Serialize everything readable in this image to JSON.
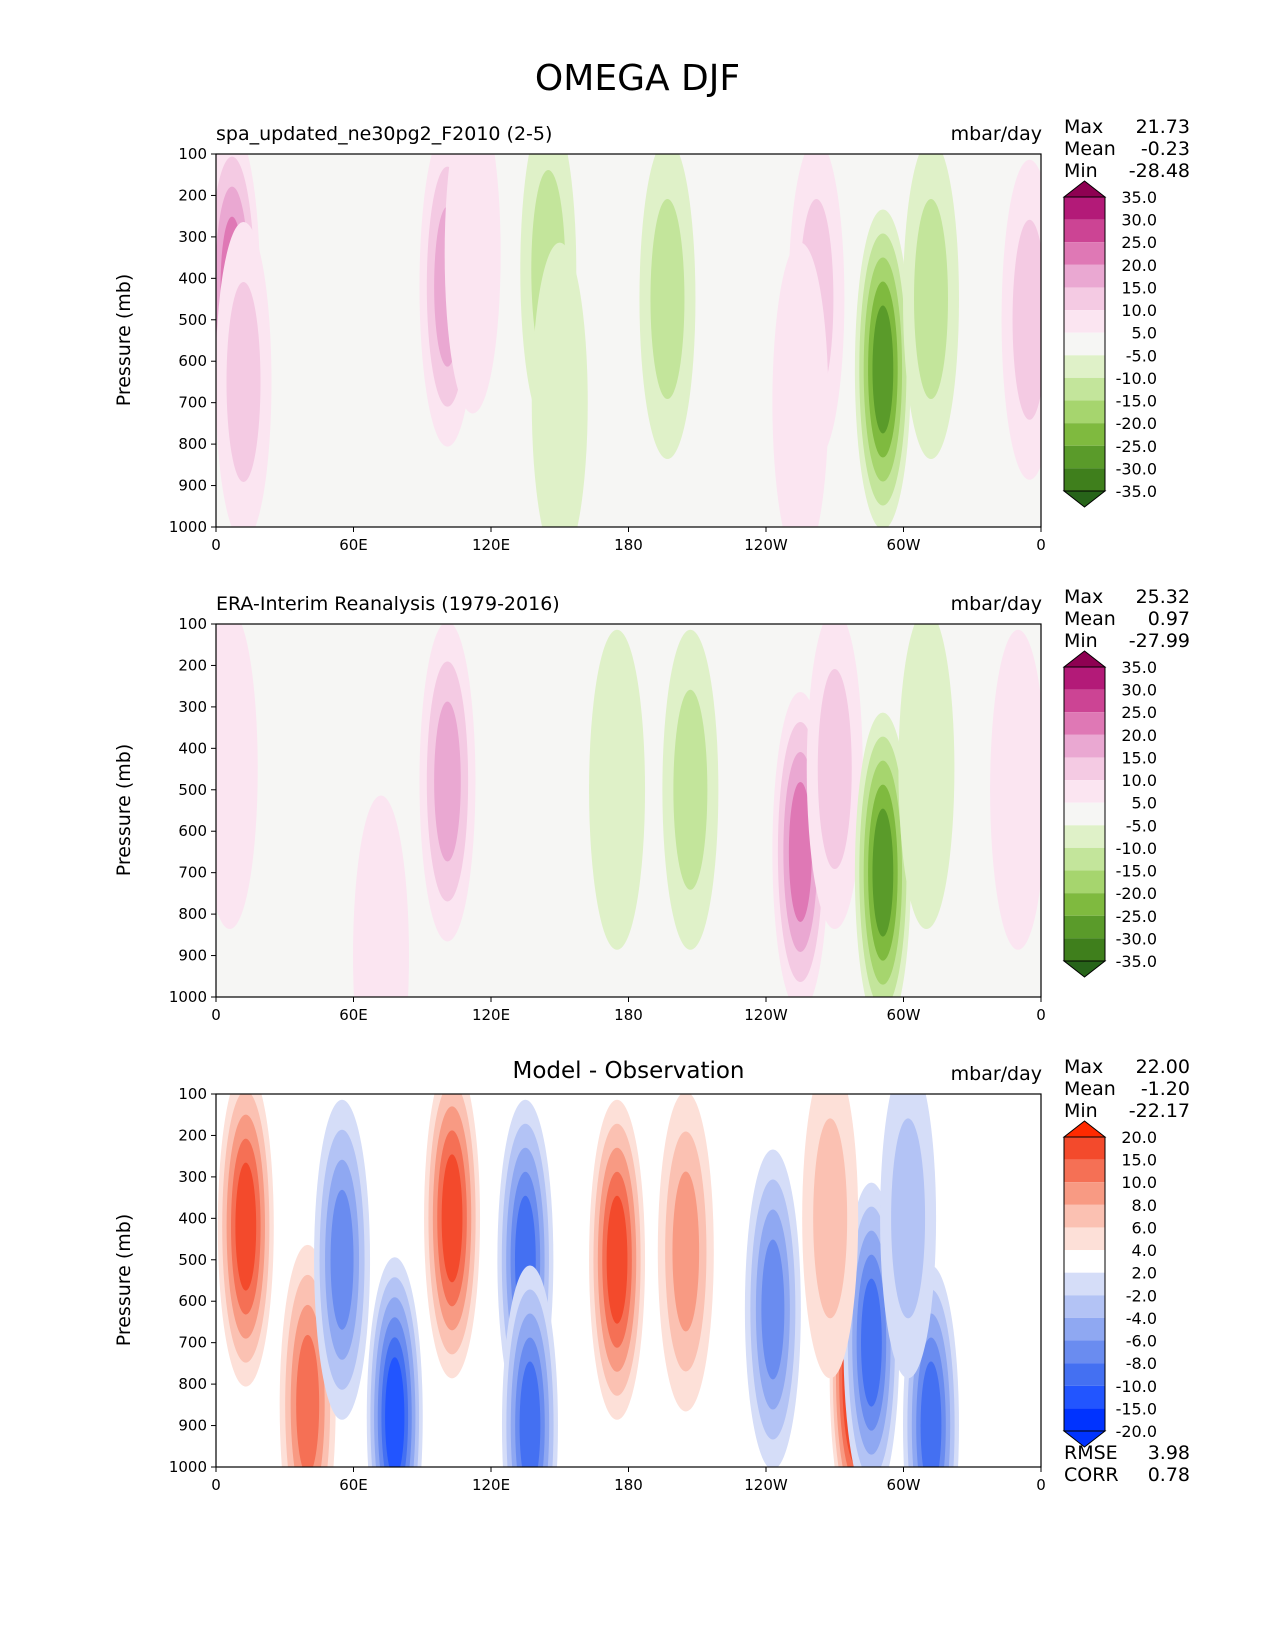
{
  "title": "OMEGA DJF",
  "colors": {
    "omega_levels_fill": [
      "#276419",
      "#3f7f1c",
      "#5a9b2a",
      "#7fba3f",
      "#a6d56e",
      "#c3e59b",
      "#dff1c8",
      "#f6f6f4",
      "#fbe5f1",
      "#f4cae3",
      "#eaa8d2",
      "#df78b5",
      "#cc4494",
      "#b31a78",
      "#8e0152"
    ],
    "diff_levels_fill": [
      "#0033ff",
      "#2255ff",
      "#4470f2",
      "#6a8cf0",
      "#8fa8f2",
      "#b3c3f5",
      "#d5ddf8",
      "#ffffff",
      "#fde0d8",
      "#fbc1b2",
      "#f89a83",
      "#f57055",
      "#f34a2c",
      "#ff2a00"
    ]
  },
  "panels": [
    {
      "title": "spa_updated_ne30pg2_F2010 (2-5)",
      "units": "mbar/day",
      "stats": [
        {
          "label": "Max",
          "value": "21.73"
        },
        {
          "label": "Mean",
          "value": "-0.23"
        },
        {
          "label": "Min",
          "value": "-28.48"
        }
      ],
      "colorbar_ticks": [
        "35.0",
        "30.0",
        "25.0",
        "20.0",
        "15.0",
        "10.0",
        "5.0",
        "-5.0",
        "-10.0",
        "-15.0",
        "-20.0",
        "-25.0",
        "-30.0",
        "-35.0"
      ]
    },
    {
      "title": "ERA-Interim Reanalysis (1979-2016)",
      "units": "mbar/day",
      "stats": [
        {
          "label": "Max",
          "value": "25.32"
        },
        {
          "label": "Mean",
          "value": "0.97"
        },
        {
          "label": "Min",
          "value": "-27.99"
        }
      ],
      "colorbar_ticks": [
        "35.0",
        "30.0",
        "25.0",
        "20.0",
        "15.0",
        "10.0",
        "5.0",
        "-5.0",
        "-10.0",
        "-15.0",
        "-20.0",
        "-25.0",
        "-30.0",
        "-35.0"
      ]
    },
    {
      "title": "Model - Observation",
      "units": "mbar/day",
      "stats": [
        {
          "label": "Max",
          "value": "22.00"
        },
        {
          "label": "Mean",
          "value": "-1.20"
        },
        {
          "label": "Min",
          "value": "-22.17"
        }
      ],
      "colorbar_ticks": [
        "20.0",
        "15.0",
        "10.0",
        "8.0",
        "6.0",
        "4.0",
        "2.0",
        "-2.0",
        "-4.0",
        "-6.0",
        "-8.0",
        "-10.0",
        "-15.0",
        "-20.0"
      ],
      "metrics": [
        {
          "label": "RMSE",
          "value": "3.98"
        },
        {
          "label": "CORR",
          "value": "0.78"
        }
      ]
    }
  ],
  "chart_data": [
    {
      "type": "heatmap",
      "title": "spa_updated_ne30pg2_F2010 (2-5)",
      "units": "mbar/day",
      "xlabel": "",
      "ylabel": "Pressure (mb)",
      "x_ticks": [
        "0",
        "60E",
        "120E",
        "180",
        "120W",
        "60W",
        "0"
      ],
      "y_ticks": [
        "100",
        "200",
        "300",
        "400",
        "500",
        "600",
        "700",
        "800",
        "900",
        "1000"
      ],
      "xlim": [
        0,
        360
      ],
      "ylim": [
        1000,
        100
      ],
      "levels": [
        -35,
        -30,
        -25,
        -20,
        -15,
        -10,
        -5,
        5,
        10,
        15,
        20,
        25,
        30,
        35
      ],
      "features": [
        {
          "lon": 7,
          "plev": 420,
          "value": 22
        },
        {
          "lon": 12,
          "plev": 650,
          "value": 12
        },
        {
          "lon": 101,
          "plev": 420,
          "value": 18
        },
        {
          "lon": 112,
          "plev": 340,
          "value": 8
        },
        {
          "lon": 145,
          "plev": 380,
          "value": -14
        },
        {
          "lon": 150,
          "plev": 700,
          "value": -7
        },
        {
          "lon": 197,
          "plev": 450,
          "value": -12
        },
        {
          "lon": 262,
          "plev": 450,
          "value": 10
        },
        {
          "lon": 255,
          "plev": 700,
          "value": 6
        },
        {
          "lon": 291,
          "plev": 620,
          "value": -28
        },
        {
          "lon": 312,
          "plev": 450,
          "value": -12
        },
        {
          "lon": 355,
          "plev": 500,
          "value": 10
        }
      ]
    },
    {
      "type": "heatmap",
      "title": "ERA-Interim Reanalysis (1979-2016)",
      "units": "mbar/day",
      "xlabel": "",
      "ylabel": "Pressure (mb)",
      "x_ticks": [
        "0",
        "60E",
        "120E",
        "180",
        "120W",
        "60W",
        "0"
      ],
      "y_ticks": [
        "100",
        "200",
        "300",
        "400",
        "500",
        "600",
        "700",
        "800",
        "900",
        "1000"
      ],
      "xlim": [
        0,
        360
      ],
      "ylim": [
        1000,
        100
      ],
      "levels": [
        -35,
        -30,
        -25,
        -20,
        -15,
        -10,
        -5,
        5,
        10,
        15,
        20,
        25,
        30,
        35
      ],
      "features": [
        {
          "lon": 6,
          "plev": 450,
          "value": 8
        },
        {
          "lon": 101,
          "plev": 480,
          "value": 18
        },
        {
          "lon": 72,
          "plev": 900,
          "value": 8
        },
        {
          "lon": 175,
          "plev": 500,
          "value": -8
        },
        {
          "lon": 207,
          "plev": 500,
          "value": -12
        },
        {
          "lon": 255,
          "plev": 650,
          "value": 20
        },
        {
          "lon": 270,
          "plev": 450,
          "value": 10
        },
        {
          "lon": 291,
          "plev": 700,
          "value": -25
        },
        {
          "lon": 310,
          "plev": 450,
          "value": -8
        },
        {
          "lon": 350,
          "plev": 500,
          "value": 8
        }
      ]
    },
    {
      "type": "heatmap",
      "title": "Model - Observation",
      "units": "mbar/day",
      "xlabel": "",
      "ylabel": "Pressure (mb)",
      "x_ticks": [
        "0",
        "60E",
        "120E",
        "180",
        "120W",
        "60W",
        "0"
      ],
      "y_ticks": [
        "100",
        "200",
        "300",
        "400",
        "500",
        "600",
        "700",
        "800",
        "900",
        "1000"
      ],
      "xlim": [
        0,
        360
      ],
      "ylim": [
        1000,
        100
      ],
      "levels": [
        -20,
        -15,
        -10,
        -8,
        -6,
        -4,
        -2,
        2,
        4,
        6,
        8,
        10,
        15,
        20
      ],
      "features": [
        {
          "lon": 13,
          "plev": 420,
          "value": 14
        },
        {
          "lon": 40,
          "plev": 850,
          "value": 8
        },
        {
          "lon": 55,
          "plev": 500,
          "value": -8
        },
        {
          "lon": 78,
          "plev": 880,
          "value": -16
        },
        {
          "lon": 103,
          "plev": 400,
          "value": 12
        },
        {
          "lon": 135,
          "plev": 500,
          "value": -14
        },
        {
          "lon": 137,
          "plev": 900,
          "value": -12
        },
        {
          "lon": 175,
          "plev": 500,
          "value": 10
        },
        {
          "lon": 205,
          "plev": 480,
          "value": 6
        },
        {
          "lon": 243,
          "plev": 620,
          "value": -8
        },
        {
          "lon": 280,
          "plev": 780,
          "value": 20
        },
        {
          "lon": 286,
          "plev": 700,
          "value": -12
        },
        {
          "lon": 312,
          "plev": 900,
          "value": -14
        },
        {
          "lon": 302,
          "plev": 400,
          "value": -5
        },
        {
          "lon": 268,
          "plev": 400,
          "value": 4
        }
      ]
    }
  ]
}
